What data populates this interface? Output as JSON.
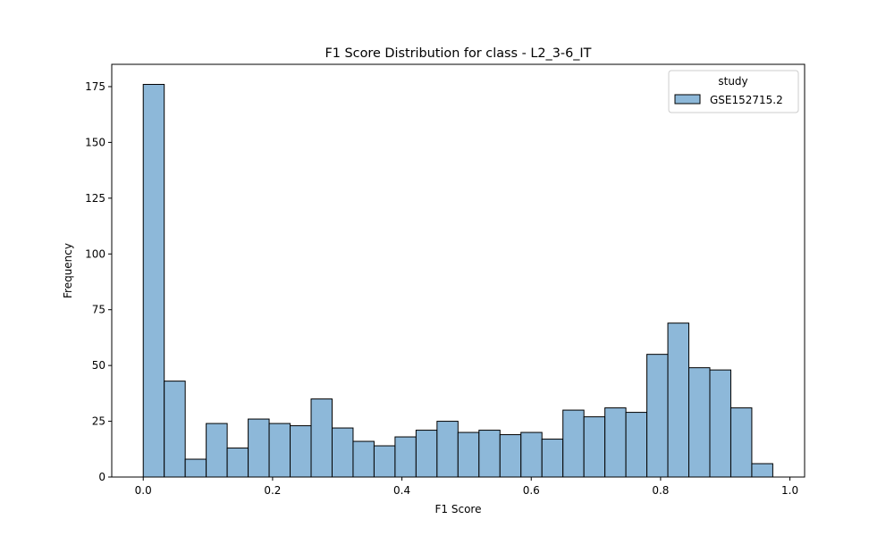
{
  "chart_data": {
    "type": "bar",
    "title": "F1 Score Distribution for class - L2_3-6_IT",
    "xlabel": "F1 Score",
    "ylabel": "Frequency",
    "xlim": [
      -0.0487,
      1.0227
    ],
    "ylim": [
      0,
      185
    ],
    "xticks": [
      0.0,
      0.2,
      0.4,
      0.6,
      0.8,
      1.0
    ],
    "xtick_labels": [
      "0.0",
      "0.2",
      "0.4",
      "0.6",
      "0.8",
      "1.0"
    ],
    "yticks": [
      0,
      25,
      50,
      75,
      100,
      125,
      150,
      175
    ],
    "ytick_labels": [
      "0",
      "25",
      "50",
      "75",
      "100",
      "125",
      "150",
      "175"
    ],
    "bin_start": 0.0,
    "bin_width": 0.03245,
    "values": [
      176,
      43,
      8,
      24,
      13,
      26,
      24,
      23,
      35,
      22,
      16,
      14,
      18,
      21,
      25,
      20,
      21,
      19,
      20,
      17,
      30,
      27,
      31,
      29,
      55,
      69,
      49,
      48,
      31,
      6
    ],
    "legend": {
      "title": "study",
      "entries": [
        "GSE152715.2"
      ],
      "placement": "upper right"
    },
    "colors": {
      "bar_fill": "#8db8d9",
      "bar_edge": "#000000",
      "axis": "#000000",
      "background": "#ffffff"
    }
  }
}
